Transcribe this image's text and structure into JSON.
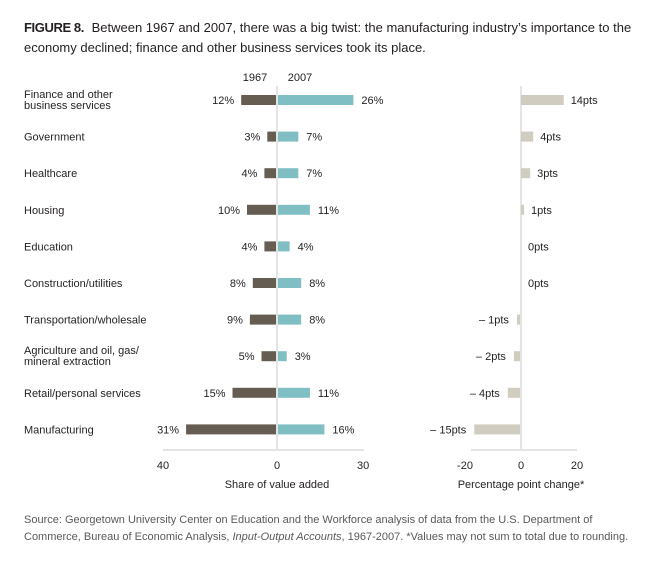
{
  "caption": {
    "figure_label": "FIGURE 8.",
    "text": "Between 1967 and 2007, there was a big twist: the manufacturing industry’s importance to the economy declined; finance and other business services took its place."
  },
  "source": {
    "prefix": "Source: Georgetown University Center on Education and the Workforce analysis of data from the U.S. Department of Commerce, Bureau of Economic Analysis, ",
    "italic": "Input-Output Accounts",
    "suffix": ", 1967-2007.  *Values may not sum to total due to rounding."
  },
  "colors": {
    "bar_1967": "#655d52",
    "bar_2007": "#7fbfc4",
    "bar_change": "#d0cdc0",
    "axis": "#e4e4e4"
  },
  "chart_data": [
    {
      "type": "bar",
      "orientation": "horizontal-diverging",
      "title": "Share of value added",
      "xlabel": "Share of value added",
      "column_headers": [
        "1967",
        "2007"
      ],
      "categories": [
        "Finance and other business services",
        "Government",
        "Healthcare",
        "Housing",
        "Education",
        "Construction/utilities",
        "Transportation/wholesale",
        "Agriculture and oil, gas/ mineral extraction",
        "Retail/personal services",
        "Manufacturing"
      ],
      "category_lines": [
        [
          "Finance and other",
          "business services"
        ],
        [
          "Government"
        ],
        [
          "Healthcare"
        ],
        [
          "Housing"
        ],
        [
          "Education"
        ],
        [
          "Construction/utilities"
        ],
        [
          "Transportation/wholesale"
        ],
        [
          "Agriculture and oil, gas/",
          "mineral extraction"
        ],
        [
          "Retail/personal services"
        ],
        [
          "Manufacturing"
        ]
      ],
      "series": [
        {
          "name": "1967",
          "side": "left",
          "values": [
            12,
            3,
            4,
            10,
            4,
            8,
            9,
            5,
            15,
            31
          ],
          "labels": [
            "12%",
            "3%",
            "4%",
            "10%",
            "4%",
            "8%",
            "9%",
            "5%",
            "15%",
            "31%"
          ]
        },
        {
          "name": "2007",
          "side": "right",
          "values": [
            26,
            7,
            7,
            11,
            4,
            8,
            8,
            3,
            11,
            16
          ],
          "labels": [
            "26%",
            "7%",
            "7%",
            "11%",
            "4%",
            "8%",
            "8%",
            "3%",
            "11%",
            "16%"
          ]
        }
      ],
      "xlim_left": [
        40,
        0
      ],
      "xlim_right": [
        0,
        30
      ],
      "xticks": [
        {
          "value": -40,
          "label": "40"
        },
        {
          "value": 0,
          "label": "0"
        },
        {
          "value": 30,
          "label": "30"
        }
      ],
      "grid": false
    },
    {
      "type": "bar",
      "orientation": "horizontal",
      "xlabel": "Percentage point change*",
      "categories": [
        "Finance and other business services",
        "Government",
        "Healthcare",
        "Housing",
        "Education",
        "Construction/utilities",
        "Transportation/wholesale",
        "Agriculture and oil, gas/ mineral extraction",
        "Retail/personal services",
        "Manufacturing"
      ],
      "values": [
        14,
        4,
        3,
        1,
        0,
        0,
        -1,
        -2,
        -4,
        -15
      ],
      "labels": [
        "14pts",
        "4pts",
        "3pts",
        "1pts",
        "0pts",
        "0pts",
        "– 1pts",
        "– 2pts",
        "– 4pts",
        "– 15pts"
      ],
      "xlim": [
        -20,
        20
      ],
      "xticks": [
        {
          "value": -20,
          "label": "-20"
        },
        {
          "value": 0,
          "label": "0"
        },
        {
          "value": 20,
          "label": "20"
        }
      ],
      "grid": false
    }
  ]
}
